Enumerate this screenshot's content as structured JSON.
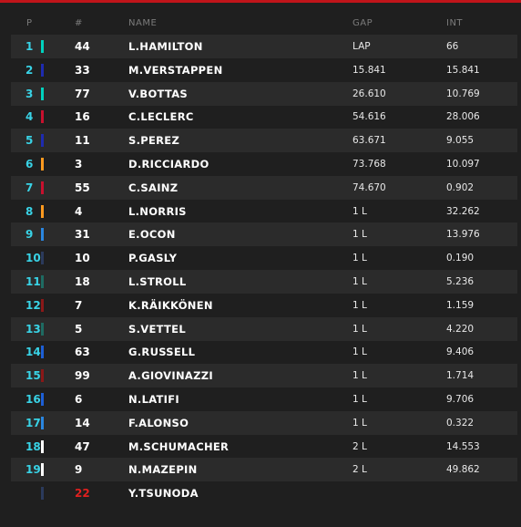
{
  "header": {
    "pos": "P",
    "number": "#",
    "name": "NAME",
    "gap": "GAP",
    "int": "INT"
  },
  "rows": [
    {
      "pos": 1,
      "team_color": "#00d2be",
      "number": 44,
      "name": "L.HAMILTON",
      "gap": "LAP",
      "int": "66"
    },
    {
      "pos": 2,
      "team_color": "#1e2bb0",
      "number": 33,
      "name": "M.VERSTAPPEN",
      "gap": "15.841",
      "int": "15.841"
    },
    {
      "pos": 3,
      "team_color": "#00d2be",
      "number": 77,
      "name": "V.BOTTAS",
      "gap": "26.610",
      "int": "10.769"
    },
    {
      "pos": 4,
      "team_color": "#c8102e",
      "number": 16,
      "name": "C.LECLERC",
      "gap": "54.616",
      "int": "28.006"
    },
    {
      "pos": 5,
      "team_color": "#1e2bb0",
      "number": 11,
      "name": "S.PEREZ",
      "gap": "63.671",
      "int": "9.055"
    },
    {
      "pos": 6,
      "team_color": "#ff9a1f",
      "number": 3,
      "name": "D.RICCIARDO",
      "gap": "73.768",
      "int": "10.097"
    },
    {
      "pos": 7,
      "team_color": "#c8102e",
      "number": 55,
      "name": "C.SAINZ",
      "gap": "74.670",
      "int": "0.902"
    },
    {
      "pos": 8,
      "team_color": "#ff9a1f",
      "number": 4,
      "name": "L.NORRIS",
      "gap": "1 L",
      "int": "32.262"
    },
    {
      "pos": 9,
      "team_color": "#2a86e0",
      "number": 31,
      "name": "E.OCON",
      "gap": "1 L",
      "int": "13.976"
    },
    {
      "pos": 10,
      "team_color": "#2b3a5c",
      "number": 10,
      "name": "P.GASLY",
      "gap": "1 L",
      "int": "0.190"
    },
    {
      "pos": 11,
      "team_color": "#1e6b62",
      "number": 18,
      "name": "L.STROLL",
      "gap": "1 L",
      "int": "5.236"
    },
    {
      "pos": 12,
      "team_color": "#8a1818",
      "number": 7,
      "name": "K.RÄIKKÖNEN",
      "gap": "1 L",
      "int": "1.159"
    },
    {
      "pos": 13,
      "team_color": "#1e6b62",
      "number": 5,
      "name": "S.VETTEL",
      "gap": "1 L",
      "int": "4.220"
    },
    {
      "pos": 14,
      "team_color": "#1d5fd6",
      "number": 63,
      "name": "G.RUSSELL",
      "gap": "1 L",
      "int": "9.406"
    },
    {
      "pos": 15,
      "team_color": "#8a1818",
      "number": 99,
      "name": "A.GIOVINAZZI",
      "gap": "1 L",
      "int": "1.714"
    },
    {
      "pos": 16,
      "team_color": "#1d5fd6",
      "number": 6,
      "name": "N.LATIFI",
      "gap": "1 L",
      "int": "9.706"
    },
    {
      "pos": 17,
      "team_color": "#2a86e0",
      "number": 14,
      "name": "F.ALONSO",
      "gap": "1 L",
      "int": "0.322"
    },
    {
      "pos": 18,
      "team_color": "#ffffff",
      "number": 47,
      "name": "M.SCHUMACHER",
      "gap": "2 L",
      "int": "14.553"
    },
    {
      "pos": 19,
      "team_color": "#ffffff",
      "number": 9,
      "name": "N.MAZEPIN",
      "gap": "2 L",
      "int": "49.862"
    },
    {
      "pos": null,
      "team_color": "#2b3a5c",
      "number": 22,
      "number_color": "#e0201f",
      "name": "Y.TSUNODA",
      "gap": null,
      "int": null
    }
  ]
}
